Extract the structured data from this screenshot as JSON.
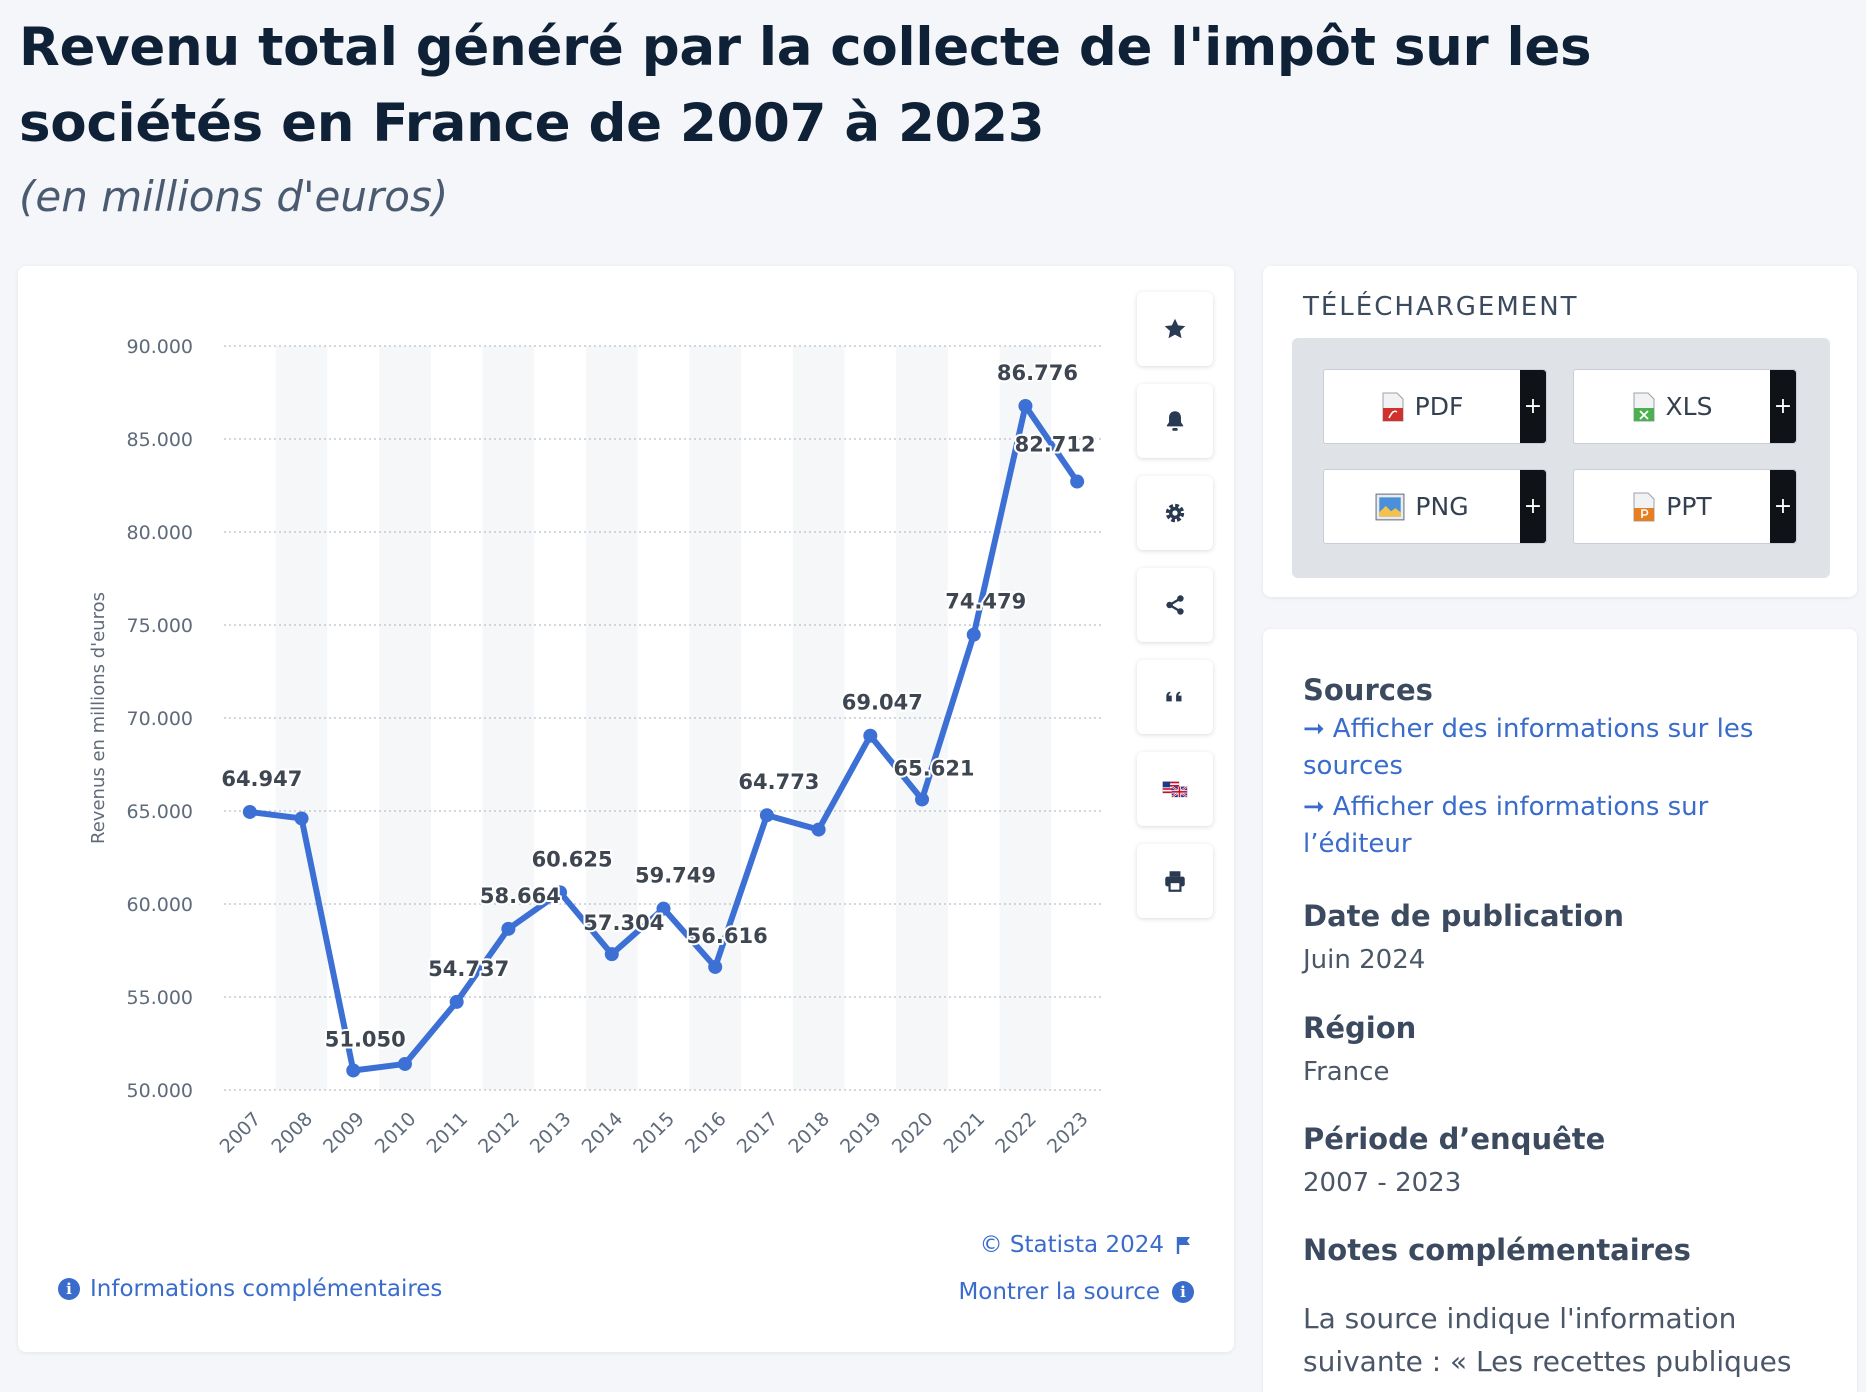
{
  "header": {
    "title": "Revenu total généré par la collecte de l'impôt sur les sociétés en France de 2007 à 2023",
    "subtitle": "(en millions d'euros)"
  },
  "chart_data": {
    "type": "line",
    "title": "Revenu total généré par la collecte de l'impôt sur les sociétés en France de 2007 à 2023",
    "subtitle": "(en millions d'euros)",
    "xlabel": "",
    "ylabel": "Revenus en millions d'euros",
    "ylim": [
      50000,
      90000
    ],
    "yticks": [
      50000,
      55000,
      60000,
      65000,
      70000,
      75000,
      80000,
      85000,
      90000
    ],
    "ytick_labels": [
      "50.000",
      "55.000",
      "60.000",
      "65.000",
      "70.000",
      "75.000",
      "80.000",
      "85.000",
      "90.000"
    ],
    "grid": true,
    "categories": [
      "2007",
      "2008",
      "2009",
      "2010",
      "2011",
      "2012",
      "2013",
      "2014",
      "2015",
      "2016",
      "2017",
      "2018",
      "2019",
      "2020",
      "2021",
      "2022",
      "2023"
    ],
    "series": [
      {
        "values": [
          64947,
          64600,
          51050,
          51400,
          54737,
          58664,
          60625,
          57304,
          59749,
          56616,
          64773,
          64000,
          69047,
          65621,
          74479,
          86776,
          82712
        ],
        "data_labels": [
          "64.947",
          "",
          "51.050",
          "",
          "54.737",
          "58.664",
          "60.625",
          "57.304",
          "59.749",
          "56.616",
          "64.773",
          "",
          "69.047",
          "65.621",
          "74.479",
          "86.776",
          "82.712"
        ],
        "color": "#3c70d4"
      }
    ]
  },
  "chart_footer": {
    "credit": "© Statista 2024",
    "show_source": "Montrer la source",
    "more_info": "Informations complémentaires"
  },
  "toolbar": {
    "buttons": [
      "star-icon",
      "bell-icon",
      "gear-icon",
      "share-icon",
      "quote-icon",
      "flag-us-uk-icon",
      "print-icon"
    ]
  },
  "download": {
    "heading": "TÉLÉCHARGEMENT",
    "pdf": "PDF",
    "xls": "XLS",
    "png": "PNG",
    "ppt": "PPT",
    "plus": "+"
  },
  "info": {
    "sources_heading": "Sources",
    "sources_link": "Afficher des informations sur les sources",
    "publisher_link": "Afficher des informations sur l’éditeur",
    "arrow": "➞",
    "publication_heading": "Date de publication",
    "publication_value": "Juin 2024",
    "region_heading": "Région",
    "region_value": "France",
    "period_heading": "Période d’enquête",
    "period_value": "2007 - 2023",
    "notes_heading": "Notes complémentaires",
    "notes_text": "La source indique l'information suivante : « Les recettes publiques"
  },
  "colors": {
    "accent": "#3a6ccc",
    "line": "#3c70d4",
    "title": "#0f2136"
  }
}
